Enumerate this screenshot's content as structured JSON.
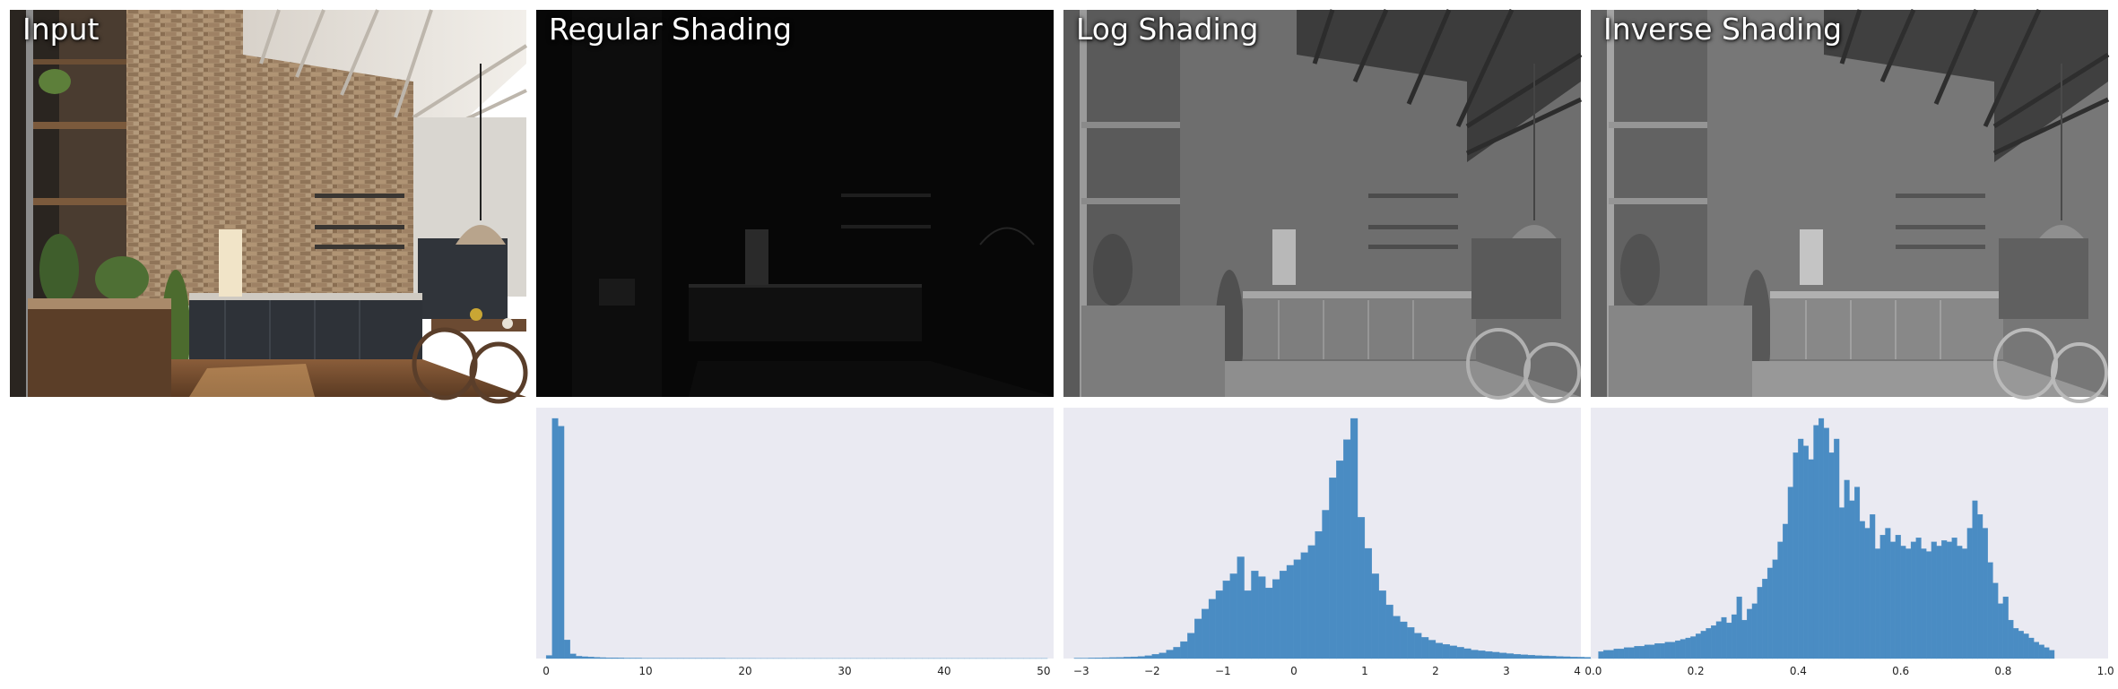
{
  "panels": [
    {
      "title": "Input",
      "kind": "input"
    },
    {
      "title": "Regular Shading",
      "kind": "regular"
    },
    {
      "title": "Log Shading",
      "kind": "log"
    },
    {
      "title": "Inverse Shading",
      "kind": "inverse"
    }
  ],
  "colors": {
    "hist_bar": "#4a8cc3",
    "hist_bg": "#eaeaf2",
    "wall_brick": "#9c8266",
    "ceiling": "#e6e2dc",
    "cabinet": "#2c3036",
    "floor": "#6e4a30"
  },
  "chart_data": [
    {
      "type": "bar",
      "name": "regular-shading-histogram",
      "xlim": [
        -1,
        51
      ],
      "xticks": [
        "0",
        "10",
        "20",
        "30",
        "40",
        "50"
      ],
      "bin_start": 0,
      "bin_width": 0.6,
      "values": [
        2,
        155,
        150,
        12,
        3,
        1.5,
        1.2,
        1,
        0.8,
        0.6,
        0.5,
        0.5,
        0.4,
        0.3,
        0.3,
        0.3,
        0.2,
        0.2,
        0.2,
        0.2,
        0.15,
        0.15,
        0.15,
        0.1,
        0.1,
        0.1,
        0.1,
        0.1,
        0.1,
        0.1,
        0.08,
        0.08,
        0.08,
        0.08,
        0.08,
        0.06,
        0.06,
        0.06,
        0.06,
        0.06,
        0.05,
        0.05,
        0.05,
        0.05,
        0.05,
        0.05,
        0.05,
        0.05,
        0.05,
        0.05,
        0.05,
        0.05,
        0.05,
        0.05,
        0.05,
        0.05,
        0.05,
        0.05,
        0.05,
        0.05,
        0.05,
        0.05,
        0.05,
        0.05,
        0.05,
        0.05,
        0.05,
        0.05,
        0.05,
        0.05,
        0.05,
        0.05,
        0.05,
        0.05,
        0.05,
        0.05,
        0.05,
        0.05,
        0.05,
        0.05,
        0.05,
        0.05,
        0.05,
        0.05
      ]
    },
    {
      "type": "bar",
      "name": "log-shading-histogram",
      "xlim": [
        -3.25,
        4.05
      ],
      "xticks": [
        "−3",
        "−2",
        "−1",
        "0",
        "1",
        "2",
        "3",
        "4"
      ],
      "tick_values": [
        -3,
        -2,
        -1,
        0,
        1,
        2,
        3,
        4
      ],
      "bin_start": -3.1,
      "bin_width": 0.1,
      "values": [
        0.3,
        0.3,
        0.4,
        0.5,
        0.6,
        0.7,
        0.8,
        1,
        1.2,
        1.5,
        2,
        3,
        4,
        6,
        8,
        12,
        18,
        28,
        35,
        42,
        48,
        55,
        60,
        72,
        48,
        62,
        58,
        50,
        56,
        62,
        66,
        70,
        75,
        80,
        90,
        105,
        128,
        140,
        155,
        170,
        100,
        78,
        60,
        48,
        38,
        30,
        26,
        22,
        18,
        15,
        13,
        11,
        10,
        9,
        8,
        7,
        6,
        5.5,
        5,
        4.5,
        4,
        3.5,
        3,
        2.7,
        2.4,
        2.1,
        1.9,
        1.7,
        1.5,
        1.3,
        1.1,
        1,
        0.9
      ]
    },
    {
      "type": "bar",
      "name": "inverse-shading-histogram",
      "xlim": [
        -0.005,
        1.005
      ],
      "xticks": [
        "0.0",
        "0.2",
        "0.4",
        "0.6",
        "0.8",
        "1.0"
      ],
      "tick_values": [
        0,
        0.2,
        0.4,
        0.6,
        0.8,
        1.0
      ],
      "bin_start": 0.01,
      "bin_width": 0.01,
      "values": [
        5,
        6,
        6,
        7,
        7,
        8,
        8,
        9,
        9,
        10,
        10,
        11,
        11,
        12,
        12,
        13,
        14,
        15,
        16,
        18,
        20,
        22,
        24,
        27,
        30,
        26,
        32,
        45,
        28,
        36,
        40,
        52,
        58,
        66,
        72,
        85,
        98,
        125,
        150,
        160,
        155,
        145,
        170,
        175,
        168,
        150,
        160,
        110,
        130,
        115,
        125,
        100,
        95,
        105,
        80,
        90,
        95,
        85,
        90,
        82,
        80,
        85,
        88,
        80,
        78,
        85,
        82,
        86,
        85,
        88,
        82,
        80,
        95,
        115,
        105,
        95,
        70,
        55,
        40,
        45,
        28,
        22,
        20,
        18,
        15,
        12,
        10,
        8,
        6
      ]
    }
  ]
}
